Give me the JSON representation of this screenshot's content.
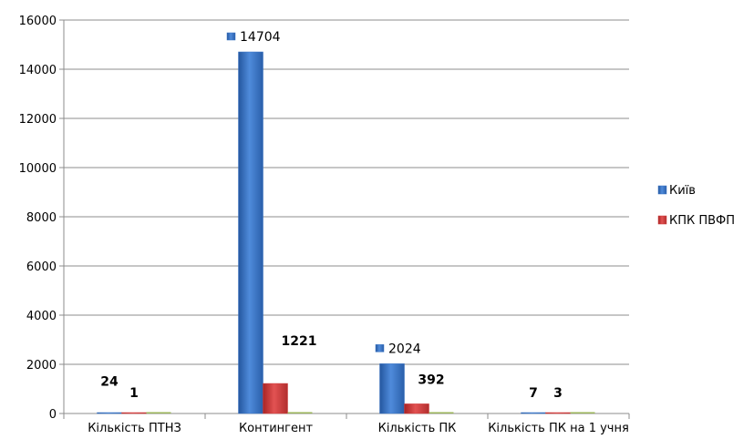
{
  "chart_data": {
    "type": "bar",
    "categories": [
      "Кількість ПТНЗ",
      "Контингент",
      "Кількість ПК",
      "Кількість ПК на 1 учня"
    ],
    "series": [
      {
        "name": "Київ",
        "values": [
          24,
          14704,
          2024,
          7
        ],
        "color": "#3A74C4"
      },
      {
        "name": "КПК ПВФП",
        "values": [
          1,
          1221,
          392,
          3
        ],
        "color": "#D03A3A"
      }
    ],
    "data_labels": [
      [
        "24",
        "14704",
        "2024",
        "7"
      ],
      [
        "1",
        "1221",
        "392",
        "3"
      ]
    ],
    "ylim": [
      0,
      16000
    ],
    "yticks": [
      "0",
      "2000",
      "4000",
      "6000",
      "8000",
      "10000",
      "12000",
      "14000",
      "16000"
    ],
    "grid": true,
    "legend": "right"
  }
}
